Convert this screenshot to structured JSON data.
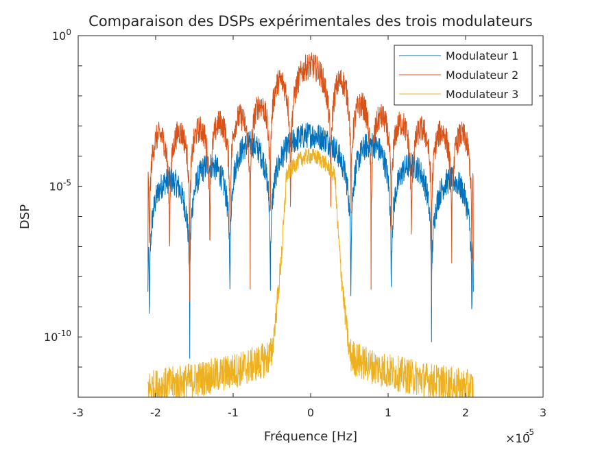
{
  "chart_data": {
    "type": "line",
    "title": "Comparaison des DSPs expérimentales des trois modulateurs",
    "xlabel": "Fréquence [Hz]",
    "ylabel": "DSP",
    "x_exponent_base": "×10",
    "x_exponent_power": "-5",
    "x_scale_factor": 1e-05,
    "xlim": [
      -3,
      3
    ],
    "xticks": [
      "-3",
      "-2",
      "-1",
      "0",
      "1",
      "2",
      "3"
    ],
    "yscale": "log",
    "ylim_exponent": [
      -12,
      0
    ],
    "yticks": [
      {
        "base": "10",
        "power": "0",
        "exp": 0
      },
      {
        "base": "10",
        "power": "-5",
        "exp": -5
      },
      {
        "base": "10",
        "power": "-10",
        "exp": -10
      }
    ],
    "grid": false,
    "legend_position": "top-right",
    "series": [
      {
        "name": "Modulateur 1",
        "color": "#0072bd",
        "x_range": [
          -2.1,
          2.1
        ],
        "lobe_null_spacing": 0.52,
        "main_lobe_peak_exp": -3.3,
        "side_lobe_peak_exps": [
          -3.6,
          -4.3,
          -4.8,
          -5.1,
          -5.3
        ],
        "null_floor_exp": -10.5,
        "edge_exp": -8.5
      },
      {
        "name": "Modulateur 2",
        "color": "#d95319",
        "x_range": [
          -2.1,
          2.1
        ],
        "lobe_null_spacing": 0.26,
        "main_lobe_peak_exp": -1.0,
        "side_lobe_peak_exps": [
          -1.5,
          -2.3,
          -2.7,
          -2.9,
          -3.1,
          -3.2,
          -3.3,
          -3.4
        ],
        "null_floor_exp": -9.0,
        "edge_exp": -7.5
      },
      {
        "name": "Modulateur 3",
        "color": "#edb120",
        "x_range": [
          -2.1,
          2.1
        ],
        "passband_edge": 0.39,
        "passband_peak_exp": -4.0,
        "passband_edge_exp": -4.7,
        "floor_center_exp": -10.5,
        "floor_edge_exp": -11.7
      }
    ]
  }
}
